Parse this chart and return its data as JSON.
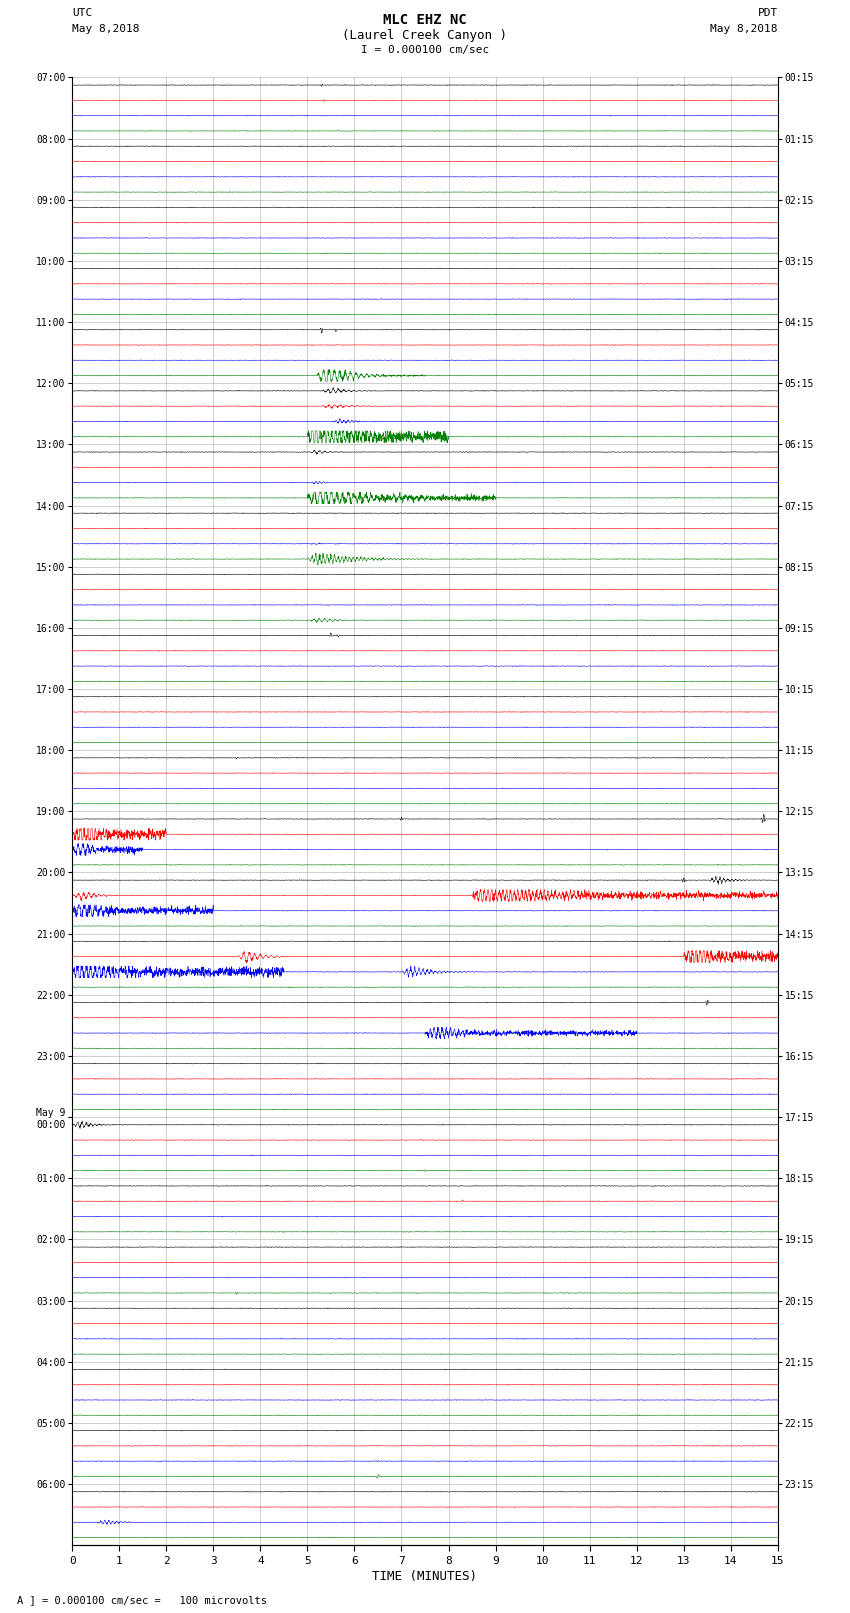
{
  "title_line1": "MLC EHZ NC",
  "title_line2": "(Laurel Creek Canyon )",
  "scale_label": "I = 0.000100 cm/sec",
  "left_header": "UTC",
  "left_header2": "May 8,2018",
  "right_header": "PDT",
  "right_header2": "May 8,2018",
  "xlabel": "TIME (MINUTES)",
  "footer": "A ] = 0.000100 cm/sec =   100 microvolts",
  "utc_labels": [
    "07:00",
    "08:00",
    "09:00",
    "10:00",
    "11:00",
    "12:00",
    "13:00",
    "14:00",
    "15:00",
    "16:00",
    "17:00",
    "18:00",
    "19:00",
    "20:00",
    "21:00",
    "22:00",
    "23:00",
    "May 9\n00:00",
    "01:00",
    "02:00",
    "03:00",
    "04:00",
    "05:00",
    "06:00"
  ],
  "pdt_labels": [
    "00:15",
    "01:15",
    "02:15",
    "03:15",
    "04:15",
    "05:15",
    "06:15",
    "07:15",
    "08:15",
    "09:15",
    "10:15",
    "11:15",
    "12:15",
    "13:15",
    "14:15",
    "15:15",
    "16:15",
    "17:15",
    "18:15",
    "19:15",
    "20:15",
    "21:15",
    "22:15",
    "23:15"
  ],
  "n_rows": 24,
  "n_cols": 4,
  "colors": [
    "black",
    "red",
    "blue",
    "green"
  ],
  "bg_color": "#ffffff",
  "x_ticks": [
    0,
    1,
    2,
    3,
    4,
    5,
    6,
    7,
    8,
    9,
    10,
    11,
    12,
    13,
    14,
    15
  ],
  "x_range": [
    0,
    15
  ],
  "noise_scale": 0.003,
  "grid_color": "#aaaaaa",
  "grid_linewidth": 0.4
}
